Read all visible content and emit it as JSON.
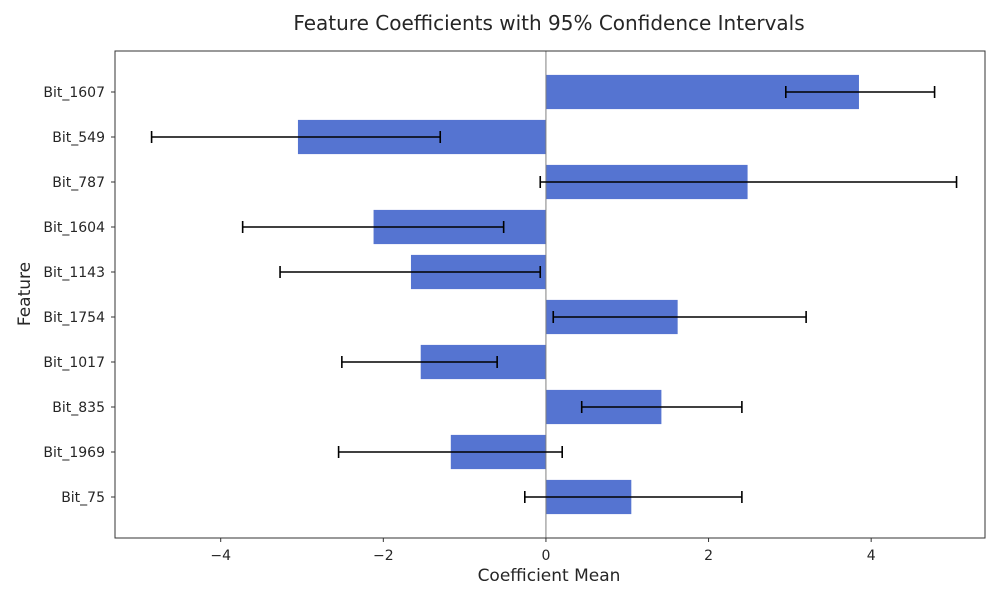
{
  "chart_data": {
    "type": "bar",
    "orientation": "horizontal",
    "title": "Feature Coefficients with 95% Confidence Intervals",
    "xlabel": "Coefficient Mean",
    "ylabel": "Feature",
    "xlim": [
      -5.3,
      5.4
    ],
    "xticks": [
      -4,
      -2,
      0,
      2,
      4
    ],
    "xtick_labels": [
      "−4",
      "−2",
      "0",
      "2",
      "4"
    ],
    "grid": false,
    "bar_color": "#5070cf",
    "errorbar_color": "#000000",
    "zero_line_color": "#808080",
    "categories": [
      "Bit_1607",
      "Bit_549",
      "Bit_787",
      "Bit_1604",
      "Bit_1143",
      "Bit_1754",
      "Bit_1017",
      "Bit_835",
      "Bit_1969",
      "Bit_75"
    ],
    "values": [
      3.85,
      -3.05,
      2.48,
      -2.12,
      -1.66,
      1.62,
      -1.54,
      1.42,
      -1.17,
      1.05
    ],
    "ci_low": [
      2.95,
      -4.85,
      -0.07,
      -3.73,
      -3.27,
      0.09,
      -2.51,
      0.44,
      -2.55,
      -0.26
    ],
    "ci_high": [
      4.78,
      -1.3,
      5.05,
      -0.52,
      -0.07,
      3.2,
      -0.6,
      2.41,
      0.2,
      2.41
    ]
  }
}
